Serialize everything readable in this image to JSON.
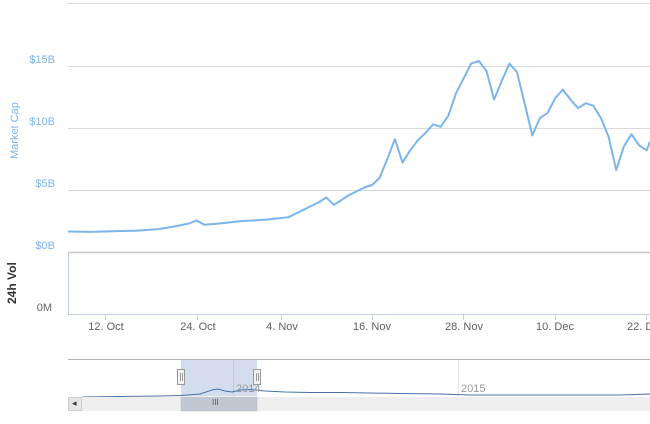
{
  "chart_data": {
    "type": "line",
    "title": "",
    "series": [
      {
        "name": "Market Cap",
        "color": "#7cb5ec",
        "points": [
          {
            "date": "2013-10-07",
            "value": 1.65
          },
          {
            "date": "2013-10-10",
            "value": 1.62
          },
          {
            "date": "2013-10-13",
            "value": 1.68
          },
          {
            "date": "2013-10-16",
            "value": 1.72
          },
          {
            "date": "2013-10-19",
            "value": 1.85
          },
          {
            "date": "2013-10-21",
            "value": 2.05
          },
          {
            "date": "2013-10-23",
            "value": 2.3
          },
          {
            "date": "2013-10-24",
            "value": 2.55
          },
          {
            "date": "2013-10-25",
            "value": 2.2
          },
          {
            "date": "2013-10-27",
            "value": 2.3
          },
          {
            "date": "2013-10-30",
            "value": 2.5
          },
          {
            "date": "2013-11-02",
            "value": 2.6
          },
          {
            "date": "2013-11-05",
            "value": 2.8
          },
          {
            "date": "2013-11-07",
            "value": 3.4
          },
          {
            "date": "2013-11-09",
            "value": 4.0
          },
          {
            "date": "2013-11-10",
            "value": 4.4
          },
          {
            "date": "2013-11-11",
            "value": 3.8
          },
          {
            "date": "2013-11-13",
            "value": 4.6
          },
          {
            "date": "2013-11-15",
            "value": 5.2
          },
          {
            "date": "2013-11-16",
            "value": 5.4
          },
          {
            "date": "2013-11-17",
            "value": 6.0
          },
          {
            "date": "2013-11-18",
            "value": 7.5
          },
          {
            "date": "2013-11-19",
            "value": 9.1
          },
          {
            "date": "2013-11-20",
            "value": 7.2
          },
          {
            "date": "2013-11-21",
            "value": 8.2
          },
          {
            "date": "2013-11-22",
            "value": 9.0
          },
          {
            "date": "2013-11-23",
            "value": 9.6
          },
          {
            "date": "2013-11-24",
            "value": 10.3
          },
          {
            "date": "2013-11-25",
            "value": 10.1
          },
          {
            "date": "2013-11-26",
            "value": 11.0
          },
          {
            "date": "2013-11-27",
            "value": 12.8
          },
          {
            "date": "2013-11-28",
            "value": 14.0
          },
          {
            "date": "2013-11-29",
            "value": 15.2
          },
          {
            "date": "2013-11-30",
            "value": 15.4
          },
          {
            "date": "2013-12-01",
            "value": 14.6
          },
          {
            "date": "2013-12-02",
            "value": 12.3
          },
          {
            "date": "2013-12-03",
            "value": 13.8
          },
          {
            "date": "2013-12-04",
            "value": 15.2
          },
          {
            "date": "2013-12-05",
            "value": 14.5
          },
          {
            "date": "2013-12-06",
            "value": 12.0
          },
          {
            "date": "2013-12-07",
            "value": 9.4
          },
          {
            "date": "2013-12-08",
            "value": 10.8
          },
          {
            "date": "2013-12-09",
            "value": 11.2
          },
          {
            "date": "2013-12-10",
            "value": 12.4
          },
          {
            "date": "2013-12-11",
            "value": 13.1
          },
          {
            "date": "2013-12-12",
            "value": 12.3
          },
          {
            "date": "2013-12-13",
            "value": 11.6
          },
          {
            "date": "2013-12-14",
            "value": 12.0
          },
          {
            "date": "2013-12-15",
            "value": 11.8
          },
          {
            "date": "2013-12-16",
            "value": 10.8
          },
          {
            "date": "2013-12-17",
            "value": 9.3
          },
          {
            "date": "2013-12-18",
            "value": 6.6
          },
          {
            "date": "2013-12-19",
            "value": 8.5
          },
          {
            "date": "2013-12-20",
            "value": 9.5
          },
          {
            "date": "2013-12-21",
            "value": 8.6
          },
          {
            "date": "2013-12-22",
            "value": 8.2
          },
          {
            "date": "2013-12-23",
            "value": 8.9
          }
        ]
      },
      {
        "name": "24h Vol",
        "color": "#7cb5ec",
        "points": []
      }
    ],
    "yaxis_market_cap": {
      "title": "Market Cap",
      "ticks": [
        "$0B",
        "$5B",
        "$10B",
        "$15B"
      ],
      "tick_values": [
        0,
        5,
        10,
        15
      ],
      "range": [
        0,
        20
      ]
    },
    "yaxis_volume": {
      "title": "24h Vol",
      "ticks": [
        "0M"
      ]
    },
    "xaxis": {
      "ticks": [
        "12. Oct",
        "24. Oct",
        "4. Nov",
        "16. Nov",
        "28. Nov",
        "10. Dec",
        "22. D"
      ]
    },
    "grid": true,
    "legend": "none",
    "navigator": {
      "labels": [
        "2014",
        "2015"
      ]
    }
  },
  "axes": {
    "market_cap_title": "Market Cap",
    "volume_title": "24h Vol",
    "y_ticks": [
      "$15B",
      "$10B",
      "$5B",
      "$0B"
    ],
    "volume_tick": "0M",
    "x_ticks": [
      "12. Oct",
      "24. Oct",
      "4. Nov",
      "16. Nov",
      "28. Nov",
      "10. Dec",
      "22. D"
    ]
  },
  "navigator": {
    "year_labels": [
      "2014",
      "2015"
    ],
    "grip_label": "III",
    "scroll_left_arrow": "◂"
  },
  "colors": {
    "series": "#7cb5ec",
    "navigator_series": "#4572a7",
    "navigator_mask": "rgba(102,133,194,0.3)",
    "grid": "#d8d8d8"
  }
}
